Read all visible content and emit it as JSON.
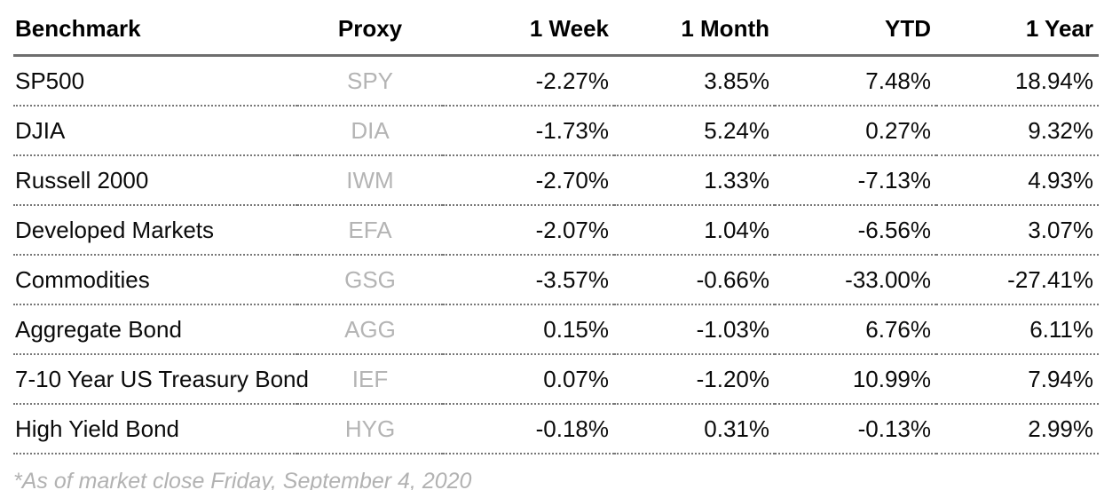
{
  "chart_data": {
    "type": "table",
    "columns": [
      "Benchmark",
      "Proxy",
      "1 Week",
      "1 Month",
      "YTD",
      "1 Year"
    ],
    "rows": [
      {
        "benchmark": "SP500",
        "proxy": "SPY",
        "week": "-2.27%",
        "month": "3.85%",
        "ytd": "7.48%",
        "year": "18.94%"
      },
      {
        "benchmark": "DJIA",
        "proxy": "DIA",
        "week": "-1.73%",
        "month": "5.24%",
        "ytd": "0.27%",
        "year": "9.32%"
      },
      {
        "benchmark": "Russell 2000",
        "proxy": "IWM",
        "week": "-2.70%",
        "month": "1.33%",
        "ytd": "-7.13%",
        "year": "4.93%"
      },
      {
        "benchmark": "Developed Markets",
        "proxy": "EFA",
        "week": "-2.07%",
        "month": "1.04%",
        "ytd": "-6.56%",
        "year": "3.07%"
      },
      {
        "benchmark": "Commodities",
        "proxy": "GSG",
        "week": "-3.57%",
        "month": "-0.66%",
        "ytd": "-33.00%",
        "year": "-27.41%"
      },
      {
        "benchmark": "Aggregate Bond",
        "proxy": "AGG",
        "week": "0.15%",
        "month": "-1.03%",
        "ytd": "6.76%",
        "year": "6.11%"
      },
      {
        "benchmark": "7-10 Year US Treasury Bond",
        "proxy": "IEF",
        "week": "0.07%",
        "month": "-1.20%",
        "ytd": "10.99%",
        "year": "7.94%"
      },
      {
        "benchmark": "High Yield Bond",
        "proxy": "HYG",
        "week": "-0.18%",
        "month": "0.31%",
        "ytd": "-0.13%",
        "year": "2.99%"
      }
    ],
    "footnote": "*As of market close Friday, September 4, 2020"
  },
  "colors": {
    "text": "#0b0b0b",
    "proxy_ticker": "#b4b4b4",
    "footnote": "#b2b2b2",
    "header_rule": "#6e6e6e",
    "row_rule_dotted": "#777777",
    "background": "#ffffff"
  }
}
